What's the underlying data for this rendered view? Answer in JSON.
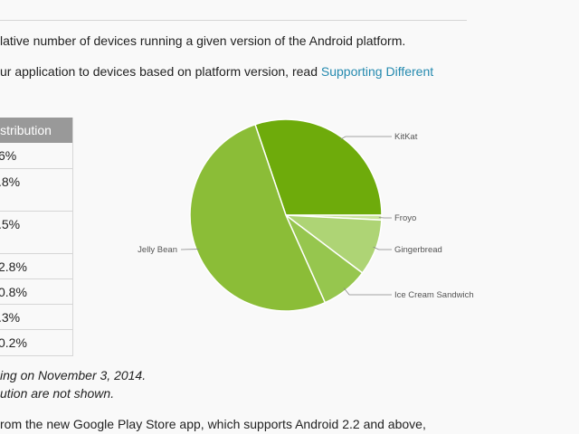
{
  "intro": {
    "line1": "lative number of devices running a given version of the Android platform.",
    "line2_prefix": "ur application to devices based on platform version, read ",
    "line2_link": "Supporting Different"
  },
  "table": {
    "header": "istribution",
    "rows": [
      "6%",
      ".8%",
      ".5%",
      "2.8%",
      "0.8%",
      ".3%",
      "0.2%"
    ]
  },
  "notes": {
    "line1": "ing on November 3, 2014.",
    "line2": "ution are not shown."
  },
  "footer": {
    "line": "rom the new Google Play Store app, which supports Android 2.2 and above,"
  },
  "chart_data": {
    "type": "pie",
    "title": "",
    "slices": [
      {
        "label": "KitKat",
        "value": 30.2,
        "color": "#6eab0b"
      },
      {
        "label": "Froyo",
        "value": 0.8,
        "color": "#c9e39a"
      },
      {
        "label": "Gingerbread",
        "value": 9.5,
        "color": "#aed475"
      },
      {
        "label": "Ice Cream Sandwich",
        "value": 8.0,
        "color": "#96c64e"
      },
      {
        "label": "Jelly Bean",
        "value": 51.5,
        "color": "#8bbd37"
      }
    ]
  }
}
